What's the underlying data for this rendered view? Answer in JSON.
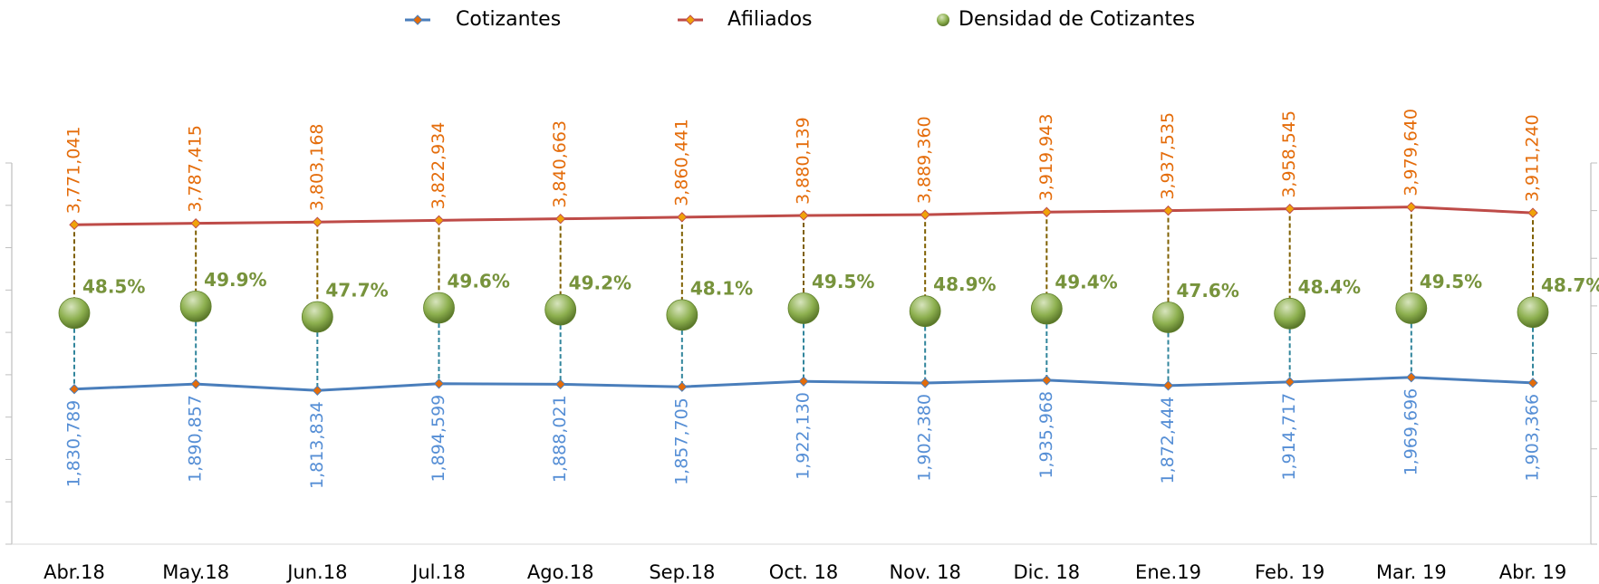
{
  "chart_data": {
    "type": "line",
    "categories": [
      "Abr.18",
      "May.18",
      "Jun.18",
      "Jul.18",
      "Ago.18",
      "Sep.18",
      "Oct. 18",
      "Nov. 18",
      "Dic. 18",
      "Ene.19",
      "Feb. 19",
      "Mar. 19",
      "Abr. 19"
    ],
    "ylim": [
      0,
      4500000
    ],
    "yticks": [
      0,
      500000,
      1000000,
      1500000,
      2000000,
      2500000,
      3000000,
      3500000,
      4000000,
      4500000
    ],
    "y2lim": [
      0,
      80
    ],
    "y2ticks": [
      0,
      10,
      20,
      30,
      40,
      50,
      60,
      70,
      80
    ],
    "series": [
      {
        "name": "Cotizantes",
        "type": "line",
        "color": "#4a7ebb",
        "marker_color": "#e46c0a",
        "label_color": "#558ed5",
        "values": [
          1830789,
          1890857,
          1813834,
          1894599,
          1888021,
          1857705,
          1922130,
          1902380,
          1935968,
          1872444,
          1914717,
          1969696,
          1903366
        ],
        "value_labels": [
          "1,830,789",
          "1,890,857",
          "1,813,834",
          "1,894,599",
          "1,888,021",
          "1,857,705",
          "1,922,130",
          "1,902,380",
          "1,935,968",
          "1,872,444",
          "1,914,717",
          "1,969,696",
          "1,903,366"
        ]
      },
      {
        "name": "Afiliados",
        "type": "line",
        "color": "#be4b48",
        "marker_color": "#f0a30a",
        "label_color": "#e46c0a",
        "values": [
          3771041,
          3787415,
          3803168,
          3822934,
          3840663,
          3860441,
          3880139,
          3889360,
          3919943,
          3937535,
          3958545,
          3979640,
          3911240
        ],
        "value_labels": [
          "3,771,041",
          "3,787,415",
          "3,803,168",
          "3,822,934",
          "3,840,663",
          "3,860,441",
          "3,880,139",
          "3,889,360",
          "3,919,943",
          "3,937,535",
          "3,958,545",
          "3,979,640",
          "3,911,240"
        ]
      },
      {
        "name": "Densidad de Cotizantes",
        "type": "scatter",
        "axis": "y2",
        "color": "#77933c",
        "label_color": "#77933c",
        "values": [
          48.5,
          49.9,
          47.7,
          49.6,
          49.2,
          48.1,
          49.5,
          48.9,
          49.4,
          47.6,
          48.4,
          49.5,
          48.7
        ],
        "value_labels": [
          "48.5%",
          "49.9%",
          "47.7%",
          "49.6%",
          "49.2%",
          "48.1%",
          "49.5%",
          "48.9%",
          "49.4%",
          "47.6%",
          "48.4%",
          "49.5%",
          "48.7%"
        ]
      }
    ]
  }
}
